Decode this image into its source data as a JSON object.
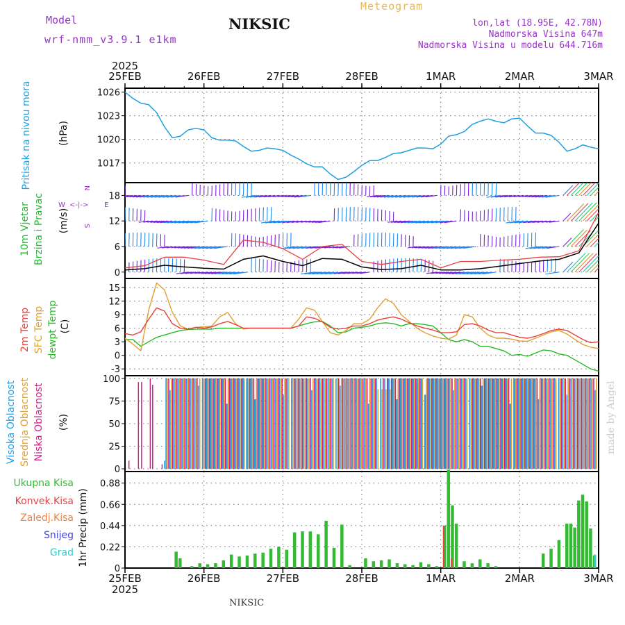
{
  "header": {
    "model_label": "Model",
    "model_name": "wrf-nmm_v3.9.1 e1km",
    "city": "NIKSIC",
    "meteogram_title": "Meteogram",
    "lonlat": "lon,lat (18.95E, 42.78N)",
    "altitude": "Nadmorska Visina 647m",
    "model_altitude": "Nadmorska Visina u modelu 644.716m"
  },
  "footer": {
    "city": "NIKSIC",
    "credit": "made by Angel"
  },
  "colors": {
    "pressure": "#1e9fe0",
    "wind_label": "#22bb33",
    "wind_unit": "#9933cc",
    "t2m": "#e8403a",
    "tsfc": "#e0a030",
    "dewpt": "#22bb22",
    "high_cloud": "#1ea0e8",
    "mid_cloud": "#e0a030",
    "low_cloud": "#cc2288",
    "precip_total": "#33bb33",
    "precip_conv": "#e84040",
    "precip_frz": "#f08040",
    "snow": "#4444dd",
    "hail": "#33cccc"
  },
  "chart_data": [
    {
      "type": "line",
      "panel": "pressure",
      "year": "2025",
      "x_ticks": [
        "25FEB",
        "26FEB",
        "27FEB",
        "28FEB",
        "1MAR",
        "2MAR",
        "3MAR"
      ],
      "ylabel": "Pritisak na nivou mora",
      "unit": "(hPa)",
      "yticks": [
        1017,
        1020,
        1023,
        1026
      ],
      "ylim": [
        1014.5,
        1026.5
      ],
      "grid": true,
      "x_days": [
        0,
        0.1,
        0.2,
        0.3,
        0.4,
        0.5,
        0.6,
        0.7,
        0.8,
        0.9,
        1.0,
        1.1,
        1.2,
        1.3,
        1.4,
        1.5,
        1.6,
        1.7,
        1.8,
        1.9,
        2.0,
        2.1,
        2.2,
        2.3,
        2.4,
        2.5,
        2.6,
        2.7,
        2.8,
        2.9,
        3.0,
        3.1,
        3.2,
        3.3,
        3.4,
        3.5,
        3.6,
        3.7,
        3.8,
        3.9,
        4.0,
        4.1,
        4.2,
        4.3,
        4.4,
        4.5,
        4.6,
        4.7,
        4.8,
        4.9,
        5.0,
        5.1,
        5.2,
        5.3,
        5.4,
        5.5,
        5.6,
        5.7,
        5.8,
        5.9,
        6.0
      ],
      "series": [
        {
          "values": [
            1026,
            1025.2,
            1024.6,
            1024.4,
            1023.4,
            1021.6,
            1020.2,
            1020.4,
            1021.2,
            1021.4,
            1021.2,
            1020.2,
            1019.9,
            1019.9,
            1019.8,
            1019.1,
            1018.5,
            1018.6,
            1018.9,
            1018.8,
            1018.6,
            1018.0,
            1017.5,
            1016.9,
            1016.5,
            1016.5,
            1015.6,
            1014.9,
            1015.2,
            1015.9,
            1016.7,
            1017.3,
            1017.3,
            1017.7,
            1018.2,
            1018.3,
            1018.6,
            1018.9,
            1018.9,
            1018.8,
            1019.4,
            1020.4,
            1020.6,
            1021.0,
            1021.9,
            1022.3,
            1022.6,
            1022.3,
            1022.1,
            1022.6,
            1022.7,
            1021.7,
            1020.8,
            1020.8,
            1020.5,
            1019.6,
            1018.5,
            1018.8,
            1019.3,
            1019.0,
            1018.8
          ]
        }
      ]
    },
    {
      "type": "line",
      "panel": "wind",
      "ylabel": "10m Vjetar",
      "ylabel2": "Brzina i Pravac",
      "unit": "(m/s)",
      "compass": {
        "n": "N",
        "s": "S",
        "e": "E",
        "w": "W"
      },
      "yticks": [
        0,
        6,
        12,
        18
      ],
      "ylim": [
        -1.5,
        21
      ],
      "grid": true,
      "x_days": [
        0,
        0.25,
        0.5,
        0.75,
        1.0,
        1.25,
        1.5,
        1.75,
        2.0,
        2.25,
        2.5,
        2.75,
        3.0,
        3.25,
        3.5,
        3.75,
        4.0,
        4.25,
        4.5,
        4.75,
        5.0,
        5.25,
        5.5,
        5.75,
        6.0
      ],
      "series": [
        {
          "name": "speed",
          "values": [
            0.5,
            0.8,
            1.6,
            1.2,
            0.9,
            0.7,
            3.0,
            3.8,
            2.5,
            1.5,
            3.2,
            3.0,
            1.2,
            0.6,
            0.8,
            1.6,
            0.5,
            0.5,
            0.8,
            1.4,
            2.0,
            2.6,
            3.0,
            4.5,
            11.5
          ]
        },
        {
          "name": "gust",
          "values": [
            1.0,
            1.5,
            3.5,
            3.5,
            2.8,
            1.8,
            7.5,
            7.0,
            5.5,
            3.0,
            6.0,
            6.5,
            2.5,
            1.8,
            2.5,
            3.0,
            1.0,
            2.5,
            2.5,
            2.8,
            3.0,
            3.5,
            3.6,
            5.0,
            14.0
          ]
        }
      ]
    },
    {
      "type": "line",
      "panel": "temperature",
      "series_labels": [
        "2m Temp",
        "SFC Temp",
        "dewpt Temp"
      ],
      "unit": "(C)",
      "yticks": [
        -3,
        0,
        3,
        6,
        9,
        12,
        15
      ],
      "ylim": [
        -4.5,
        17
      ],
      "grid": true,
      "x_days": [
        0,
        0.1,
        0.2,
        0.3,
        0.4,
        0.5,
        0.6,
        0.7,
        0.8,
        0.9,
        1.0,
        1.1,
        1.2,
        1.3,
        1.4,
        1.5,
        1.6,
        1.7,
        1.8,
        1.9,
        2.0,
        2.1,
        2.2,
        2.3,
        2.4,
        2.5,
        2.6,
        2.7,
        2.8,
        2.9,
        3.0,
        3.1,
        3.2,
        3.3,
        3.4,
        3.5,
        3.6,
        3.7,
        3.8,
        3.9,
        4.0,
        4.1,
        4.2,
        4.3,
        4.4,
        4.5,
        4.6,
        4.7,
        4.8,
        4.9,
        5.0,
        5.1,
        5.2,
        5.3,
        5.4,
        5.5,
        5.6,
        5.7,
        5.8,
        5.9,
        6.0
      ],
      "series": [
        {
          "name": "2m Temp",
          "values": [
            4.8,
            4.5,
            5.2,
            8.0,
            10.5,
            9.8,
            7.0,
            6.0,
            5.8,
            6.2,
            6.0,
            6.3,
            7.0,
            7.5,
            6.8,
            6.0,
            6.0,
            6.0,
            6.0,
            6.0,
            6.0,
            6.0,
            6.5,
            8.5,
            8.2,
            7.4,
            6.2,
            5.8,
            6.0,
            6.5,
            6.5,
            7.0,
            7.8,
            8.2,
            8.5,
            8.0,
            7.2,
            6.5,
            6.0,
            5.6,
            5.0,
            5.0,
            5.2,
            6.8,
            7.0,
            6.5,
            5.6,
            5.0,
            5.0,
            4.5,
            4.0,
            3.8,
            4.2,
            4.8,
            5.5,
            5.8,
            5.5,
            4.5,
            3.5,
            2.8,
            3.0
          ]
        },
        {
          "name": "SFC Temp",
          "values": [
            3.8,
            2.5,
            1.0,
            10.0,
            16.0,
            14.5,
            9.5,
            6.5,
            5.8,
            6.2,
            6.3,
            6.5,
            8.5,
            9.5,
            7.0,
            5.8,
            6.0,
            6.0,
            6.0,
            6.0,
            6.0,
            6.0,
            8.0,
            10.5,
            10.0,
            7.5,
            5.0,
            4.5,
            5.5,
            7.0,
            7.0,
            8.0,
            10.5,
            12.5,
            11.5,
            9.0,
            7.5,
            6.0,
            5.0,
            4.3,
            3.8,
            3.6,
            4.5,
            9.0,
            8.5,
            6.0,
            4.5,
            3.8,
            3.8,
            3.6,
            3.2,
            3.1,
            3.8,
            4.5,
            5.2,
            5.5,
            4.7,
            3.5,
            2.4,
            1.8,
            1.5
          ]
        },
        {
          "name": "dewpt Temp",
          "values": [
            3.5,
            3.5,
            2.0,
            3.0,
            4.0,
            4.5,
            5.0,
            5.5,
            5.7,
            5.8,
            5.8,
            5.8,
            6.0,
            6.0,
            6.0,
            6.0,
            6.0,
            6.0,
            6.0,
            6.0,
            6.0,
            6.0,
            6.5,
            7.0,
            7.4,
            7.5,
            6.5,
            5.0,
            5.2,
            6.0,
            6.2,
            6.5,
            7.0,
            7.2,
            7.0,
            6.5,
            7.0,
            7.0,
            6.8,
            6.5,
            5.0,
            3.5,
            3.0,
            3.5,
            3.0,
            2.0,
            2.0,
            1.5,
            1.0,
            0.0,
            0.2,
            -0.2,
            0.5,
            1.2,
            1.0,
            0.3,
            0.0,
            -1.0,
            -2.0,
            -3.0,
            -3.5
          ]
        }
      ]
    },
    {
      "type": "bar",
      "panel": "clouds",
      "series_labels": [
        "Visoka Oblacnost",
        "Srednja Oblacnost",
        "Niska Oblacnost"
      ],
      "unit": "(%)",
      "yticks": [
        0,
        25,
        50,
        75,
        100
      ],
      "ylim": [
        -3,
        103
      ],
      "grid": true,
      "note": "Cloud cover fractions mostly near 0 before 25FEB 18h, then mostly 100% through 3MAR."
    },
    {
      "type": "bar",
      "panel": "precipitation",
      "legend": [
        "Ukupna Kisa",
        "Konvek.Kisa",
        "Zaledj.Kisa",
        "Snijeg",
        "Grad"
      ],
      "ylabel": "1hr Precip",
      "unit": "(mm)",
      "yticks": [
        0,
        0.22,
        0.44,
        0.66,
        0.88
      ],
      "ylim": [
        0,
        1.0
      ],
      "grid": true,
      "x_days": [
        0.65,
        0.7,
        0.85,
        0.95,
        1.05,
        1.15,
        1.25,
        1.35,
        1.45,
        1.55,
        1.65,
        1.75,
        1.85,
        1.95,
        2.05,
        2.15,
        2.25,
        2.35,
        2.45,
        2.55,
        2.65,
        2.75,
        2.85,
        2.95,
        3.05,
        3.15,
        3.25,
        3.35,
        3.45,
        3.55,
        3.65,
        3.75,
        3.85,
        3.95,
        4.05,
        4.1,
        4.15,
        4.2,
        4.3,
        4.4,
        4.5,
        4.6,
        4.7,
        5.3,
        5.4,
        5.5,
        5.6,
        5.65,
        5.7,
        5.75,
        5.8,
        5.85,
        5.9,
        5.95
      ],
      "series": [
        {
          "name": "Ukupna Kisa",
          "values": [
            0.17,
            0.1,
            0.02,
            0.05,
            0.04,
            0.05,
            0.08,
            0.14,
            0.12,
            0.13,
            0.15,
            0.16,
            0.2,
            0.22,
            0.19,
            0.37,
            0.38,
            0.38,
            0.35,
            0.49,
            0.21,
            0.45,
            0.03,
            0.0,
            0.1,
            0.07,
            0.08,
            0.09,
            0.05,
            0.04,
            0.03,
            0.06,
            0.04,
            0.02,
            0.44,
            1.02,
            0.65,
            0.46,
            0.07,
            0.05,
            0.09,
            0.05,
            0.02,
            0.15,
            0.2,
            0.29,
            0.46,
            0.46,
            0.42,
            0.7,
            0.76,
            0.69,
            0.41,
            0.13
          ]
        },
        {
          "name": "Konvek.Kisa",
          "values": [
            0,
            0,
            0,
            0,
            0,
            0,
            0,
            0,
            0,
            0,
            0,
            0,
            0,
            0,
            0,
            0,
            0,
            0,
            0,
            0,
            0,
            0,
            0,
            0,
            0,
            0,
            0,
            0,
            0,
            0,
            0,
            0,
            0,
            0,
            0.44,
            0.0,
            0.1,
            0.0,
            0,
            0,
            0,
            0,
            0,
            0,
            0,
            0,
            0,
            0,
            0,
            0,
            0,
            0,
            0,
            0
          ]
        },
        {
          "name": "Grad",
          "values": [
            0,
            0,
            0,
            0,
            0,
            0,
            0,
            0,
            0,
            0,
            0,
            0,
            0,
            0,
            0,
            0,
            0,
            0,
            0,
            0,
            0,
            0,
            0,
            0,
            0,
            0,
            0,
            0,
            0,
            0,
            0,
            0,
            0,
            0,
            0,
            0,
            0,
            0,
            0,
            0,
            0,
            0,
            0,
            0,
            0,
            0,
            0,
            0,
            0,
            0,
            0,
            0,
            0,
            0.14
          ]
        }
      ]
    }
  ]
}
